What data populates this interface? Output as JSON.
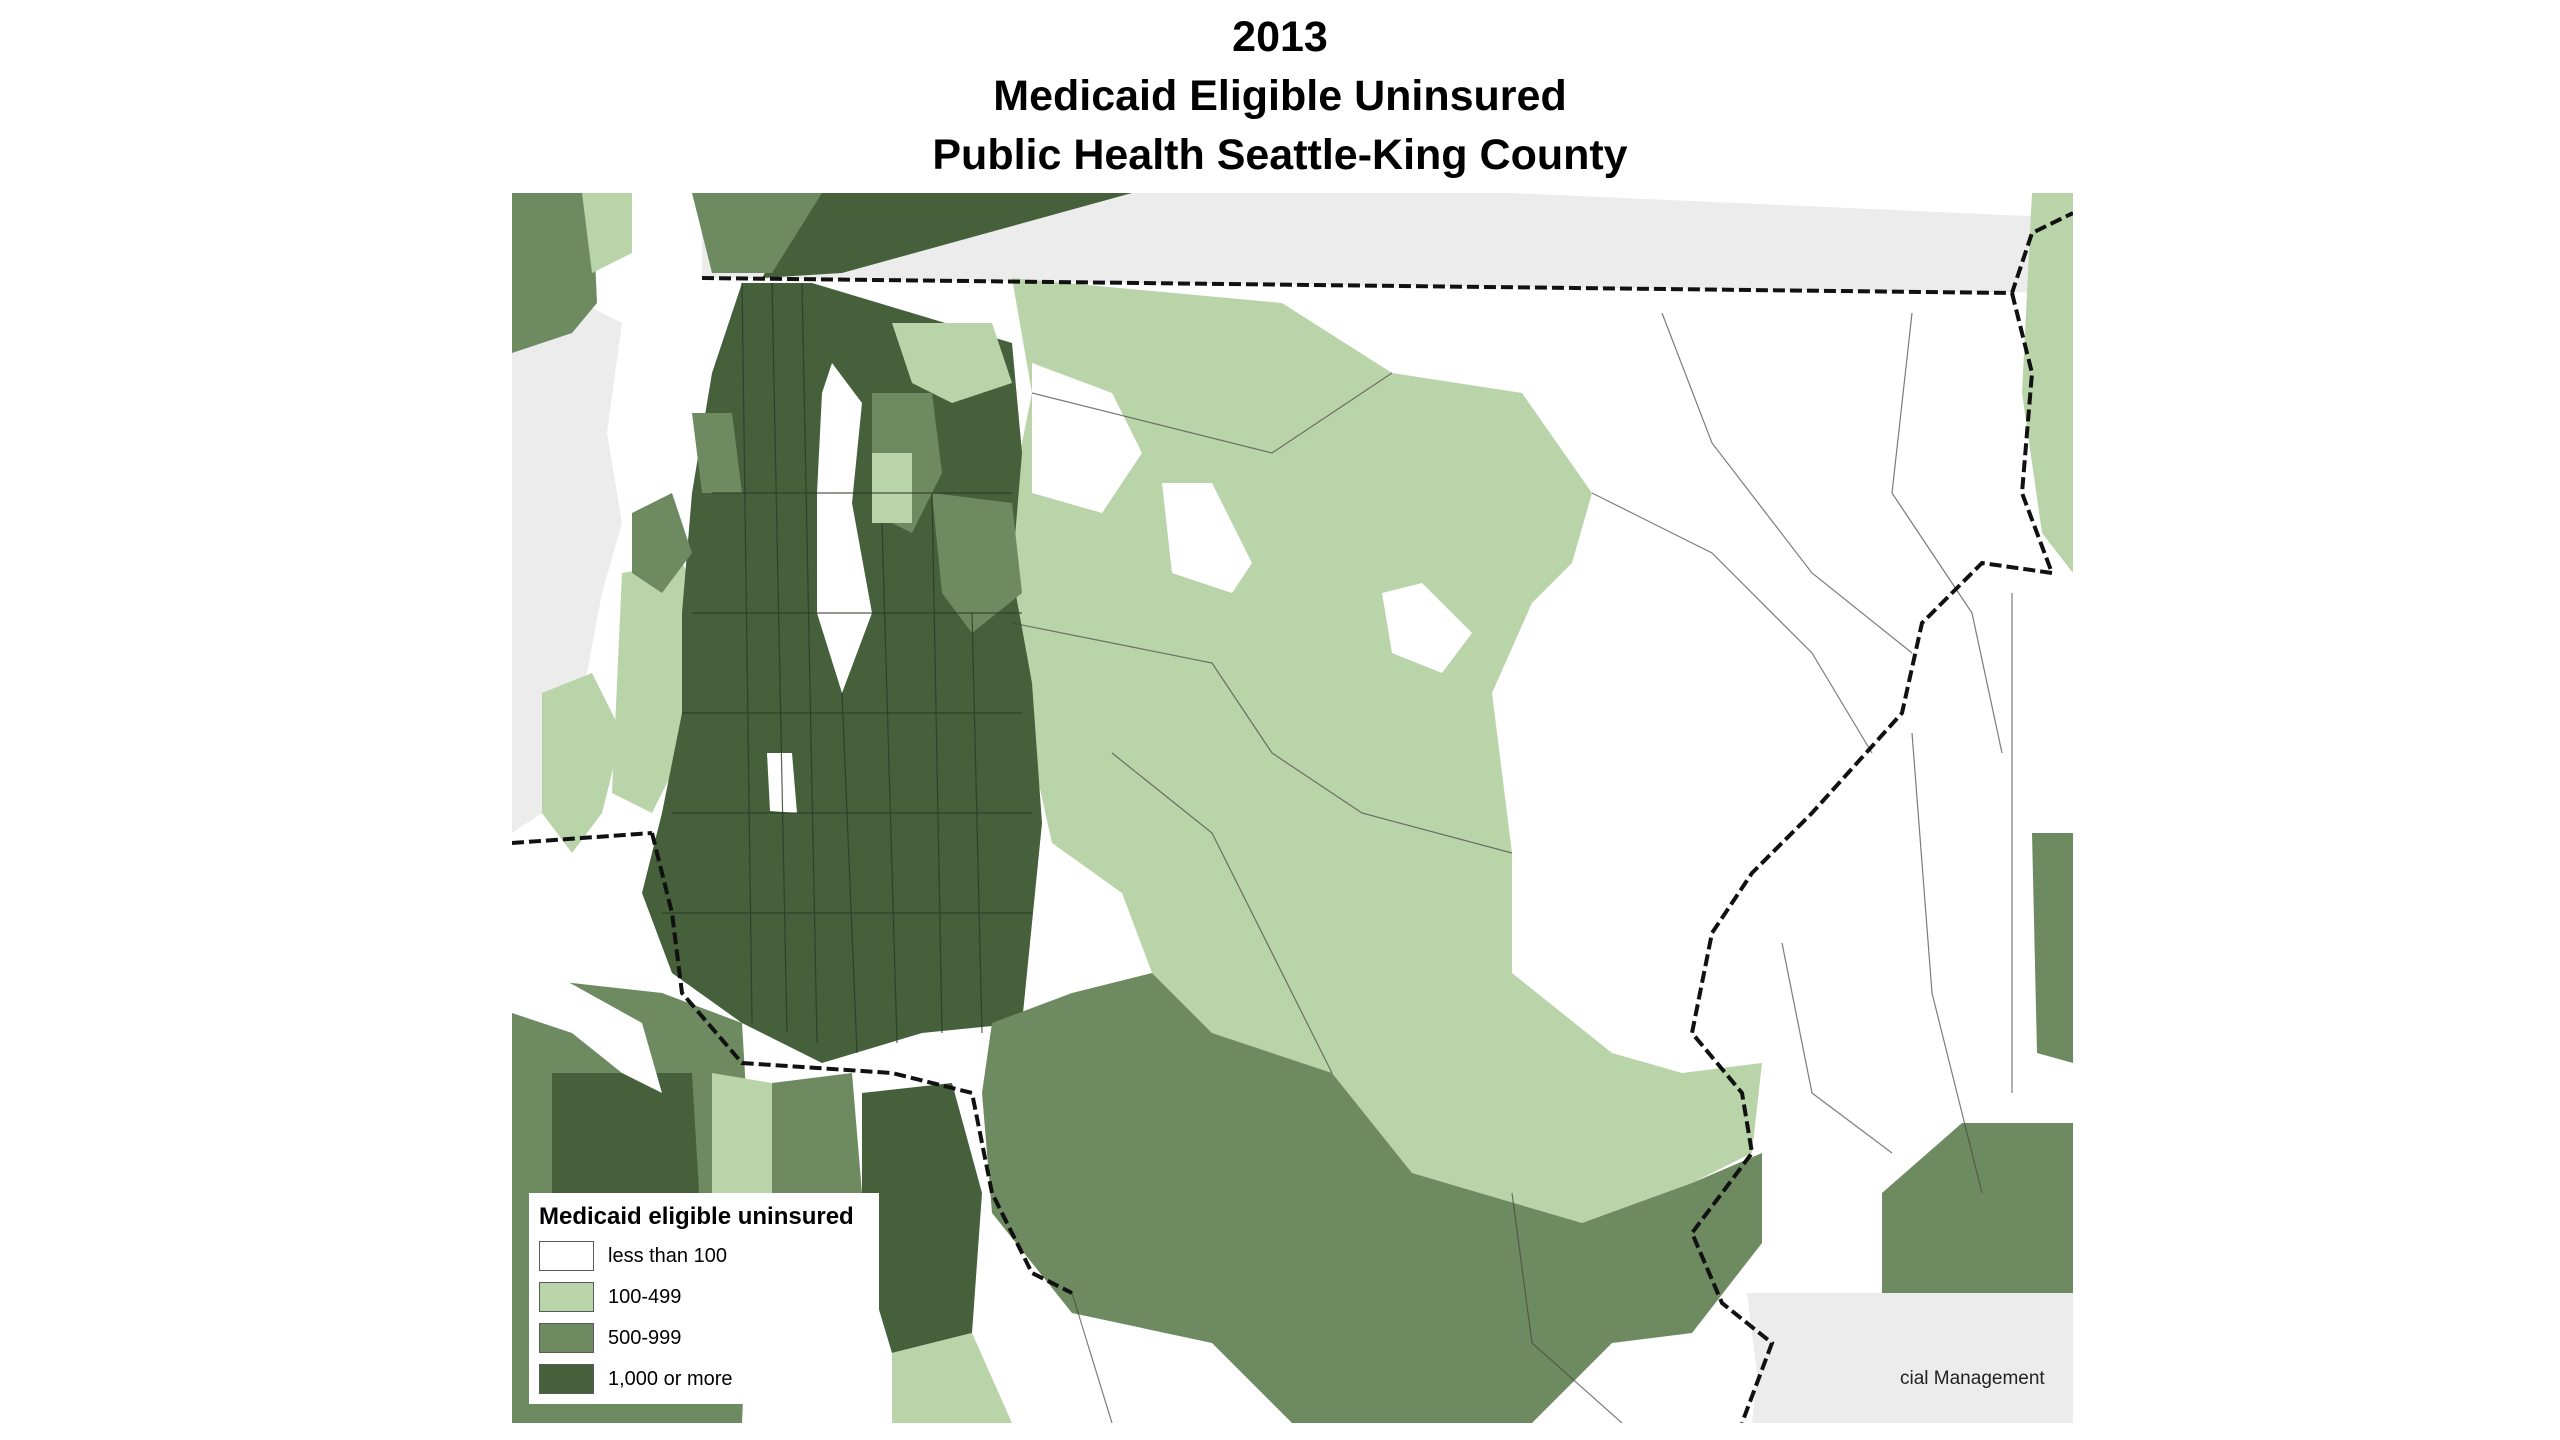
{
  "title": {
    "year": "2013",
    "line2": "Medicaid Eligible Uninsured",
    "line3": "Public Health Seattle-King County"
  },
  "legend": {
    "title": "Medicaid eligible uninsured",
    "items": [
      {
        "label": "less than 100",
        "color": "#ffffff"
      },
      {
        "label": "100-499",
        "color": "#bad4a9"
      },
      {
        "label": "500-999",
        "color": "#6e8a60"
      },
      {
        "label": "1,000 or more",
        "color": "#45603b"
      }
    ]
  },
  "credit": "cial Management",
  "colors": {
    "outside_county": "#ececec",
    "boundary": "#111111"
  }
}
